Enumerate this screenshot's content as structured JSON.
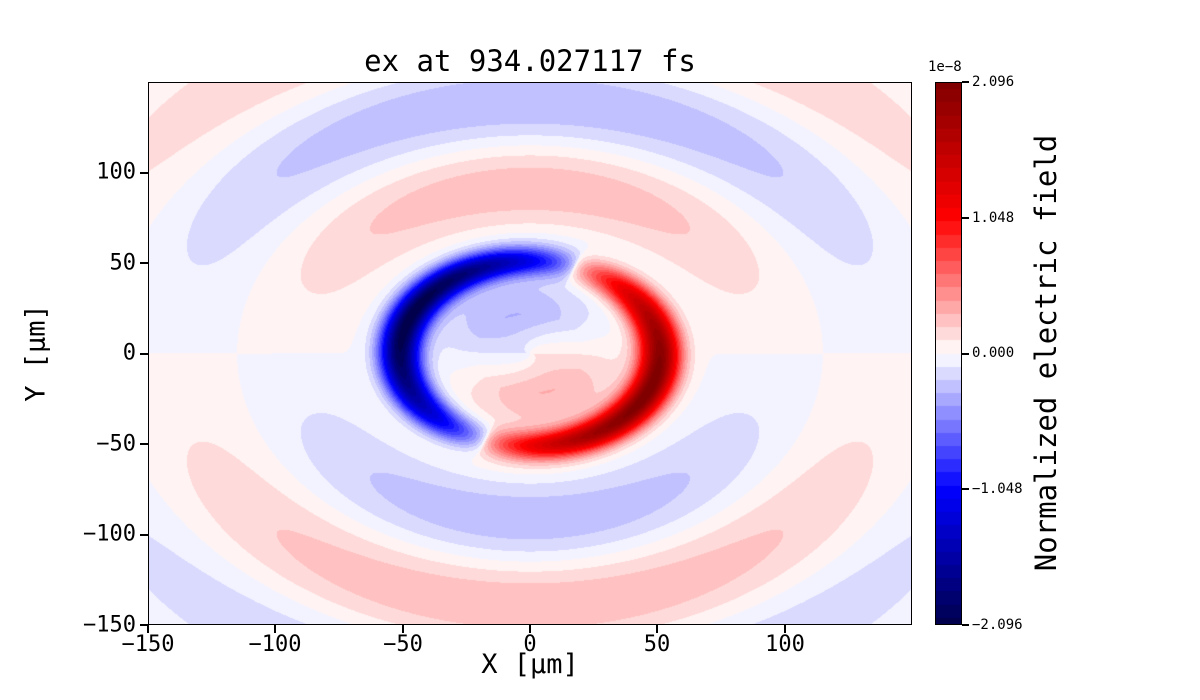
{
  "figure": {
    "background": "#ffffff",
    "text_color": "#000000"
  },
  "chart_data": {
    "type": "heatmap",
    "title": "ex at 934.027117 fs",
    "xlabel": "X [μm]",
    "ylabel": "Y [μm]",
    "xlim": [
      -150,
      150
    ],
    "ylim": [
      -150,
      150
    ],
    "x_ticks": [
      -150,
      -100,
      -50,
      0,
      50,
      100
    ],
    "x_tick_labels": [
      "−150",
      "−100",
      "−50",
      "0",
      "50",
      "100"
    ],
    "y_ticks": [
      100,
      50,
      0,
      -50,
      -100,
      -150
    ],
    "y_tick_labels": [
      "100",
      "50",
      "0",
      "−50",
      "−100",
      "−150"
    ],
    "colormap": "seismic",
    "colorbar": {
      "label": "Normalized electric field",
      "offset_label": "1e−8",
      "tick_labels": [
        "2.096",
        "1.048",
        "0.000",
        "−1.048",
        "−2.096"
      ],
      "tick_values_scaled": [
        2.096,
        1.048,
        0.0,
        -1.048,
        -2.096
      ],
      "vmax_scaled": 2.096,
      "scale_factor": "1e-8",
      "levels": 42
    },
    "field_model": {
      "description": "Snapshot of the ex field of a rotating vortex/dipole source: an intense blue crescent at x≈−50 μm and an intense red crescent at x≈+50 μm on a ring of radius ≈51 μm (slightly rotated, tips spiraling past y=±50), a pale blue lobe filling the ring interior above y=0 and a pale red lobe below y=0, surrounded by faint concentric outgoing wave bands (wavelength ≈100 μm) that alternate red/blue, strongest toward ±y and antisymmetric in y (red band near y≈+90 and y≈−130, blue band near y≈−90 and y≈+135).",
      "crescent_radius": 51,
      "crescent_width": 8,
      "crescent_amplitude": 2.1,
      "crescent_rotation_deg": 20,
      "crescent_sharpness": 0.6,
      "inner_amplitude": 0.32,
      "inner_cos_amplitude": 0.1,
      "inner_radius": 42,
      "outer_amplitude": 0.3,
      "outer_wavelength": 100,
      "outer_phase_r0": 65,
      "outer_ramp_start": 45,
      "outer_ramp_length": 25,
      "outer_envelope_center": 120,
      "outer_envelope_width": 110
    }
  }
}
